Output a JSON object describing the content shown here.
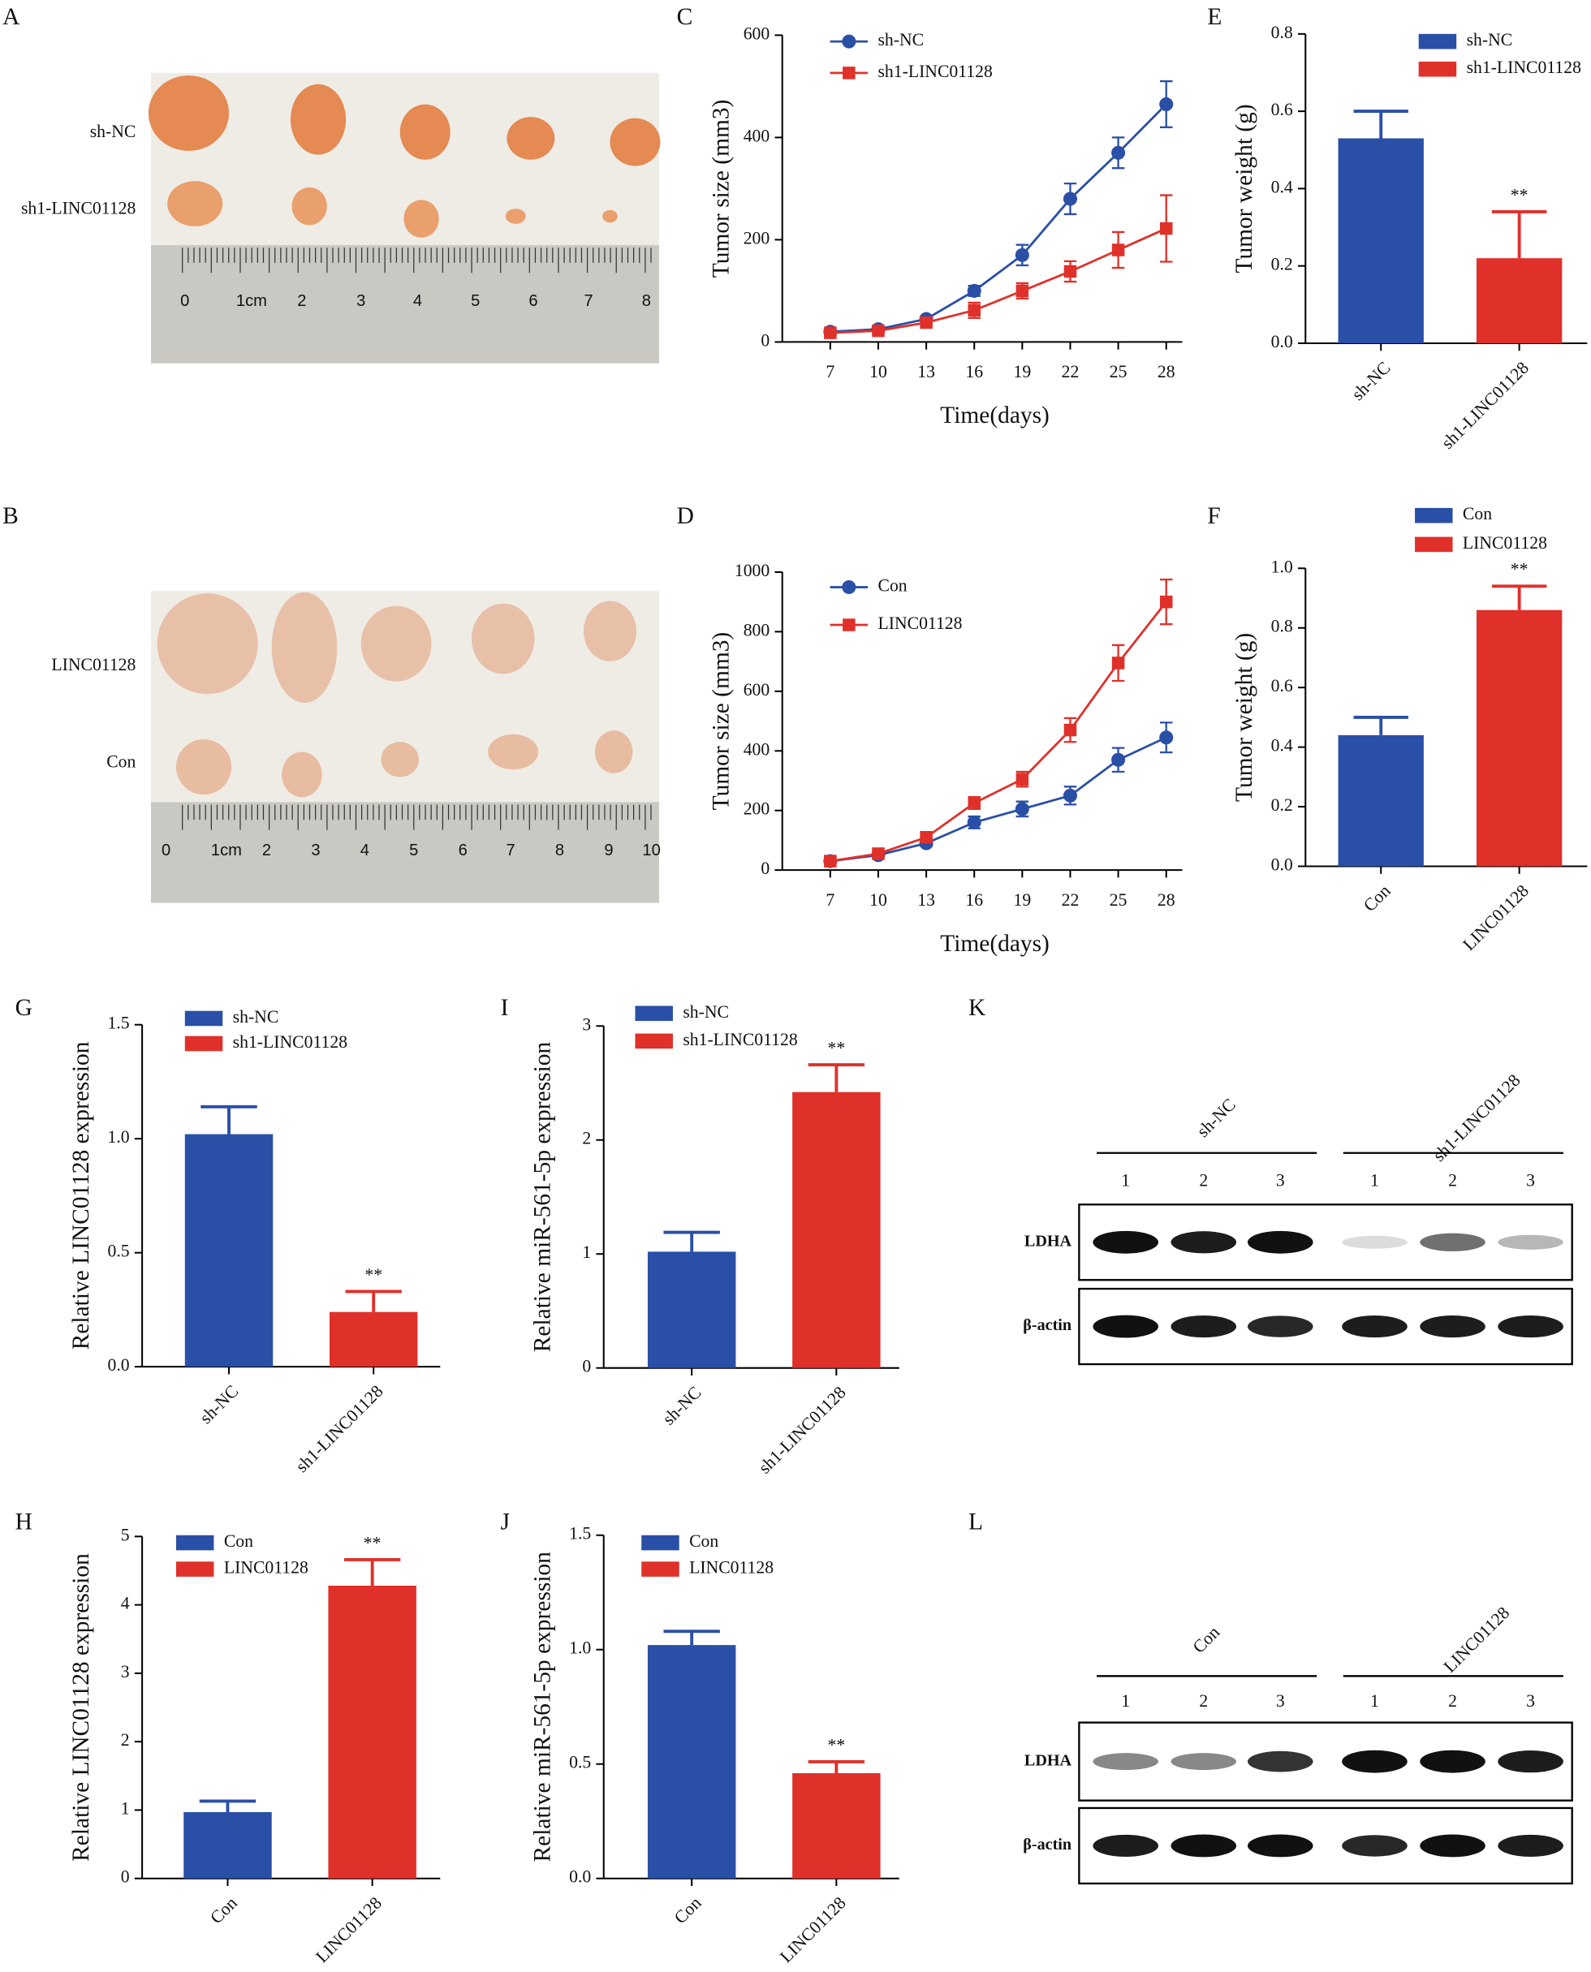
{
  "chart_data": [
    {
      "type": "line",
      "panel_label": "C",
      "ylabel": "Tumor size (mm3)",
      "xlabel": "Time(days)",
      "x": [
        7,
        10,
        13,
        16,
        19,
        22,
        25,
        28
      ],
      "xlim": [
        4,
        29
      ],
      "xticks": [
        7,
        10,
        13,
        16,
        19,
        22,
        25,
        28
      ],
      "ylim": [
        0,
        600
      ],
      "yticks": [
        0,
        200,
        400,
        600
      ],
      "series": [
        {
          "name": "sh-NC",
          "color": "#2a4fa6",
          "marker": "circle",
          "values": [
            20,
            25,
            45,
            100,
            170,
            280,
            370,
            465
          ],
          "errors": [
            5,
            5,
            5,
            10,
            20,
            30,
            30,
            45
          ]
        },
        {
          "name": "sh1-LINC01128",
          "color": "#e0302a",
          "marker": "square",
          "values": [
            18,
            22,
            38,
            62,
            100,
            138,
            180,
            222
          ],
          "errors": [
            5,
            5,
            5,
            15,
            15,
            20,
            35,
            65
          ]
        }
      ]
    },
    {
      "type": "line",
      "panel_label": "D",
      "ylabel": "Tumor size (mm3)",
      "xlabel": "Time(days)",
      "x": [
        7,
        10,
        13,
        16,
        19,
        22,
        25,
        28
      ],
      "xlim": [
        4,
        29
      ],
      "xticks": [
        7,
        10,
        13,
        16,
        19,
        22,
        25,
        28
      ],
      "ylim": [
        0,
        1000
      ],
      "yticks": [
        0,
        200,
        400,
        600,
        800,
        1000
      ],
      "series": [
        {
          "name": "Con",
          "color": "#2a4fa6",
          "marker": "circle",
          "values": [
            30,
            50,
            90,
            160,
            205,
            250,
            370,
            445
          ],
          "errors": [
            5,
            5,
            10,
            20,
            25,
            30,
            40,
            50
          ]
        },
        {
          "name": "LINC01128",
          "color": "#e0302a",
          "marker": "square",
          "values": [
            30,
            55,
            110,
            225,
            305,
            470,
            695,
            900
          ],
          "errors": [
            5,
            5,
            10,
            20,
            25,
            40,
            60,
            75
          ]
        }
      ]
    },
    {
      "type": "bar",
      "panel_label": "E",
      "ylabel": "Tumor weight (g)",
      "categories": [
        "sh-NC",
        "sh1-LINC01128"
      ],
      "values": [
        0.53,
        0.22
      ],
      "errors": [
        0.07,
        0.12
      ],
      "colors": [
        "#2a4fa6",
        "#e0302a"
      ],
      "significance": [
        null,
        "**"
      ],
      "ylim": [
        0,
        0.8
      ],
      "yticks": [
        {
          "value": 0,
          "label": "0.0"
        },
        0.2,
        0.4,
        0.6,
        0.8
      ]
    },
    {
      "type": "bar",
      "panel_label": "F",
      "ylabel": "Tumor weight (g)",
      "categories": [
        "Con",
        "LINC01128"
      ],
      "values": [
        0.44,
        0.86
      ],
      "errors": [
        0.06,
        0.08
      ],
      "colors": [
        "#2a4fa6",
        "#e0302a"
      ],
      "significance": [
        null,
        "**"
      ],
      "ylim": [
        0,
        1
      ],
      "yticks": [
        {
          "value": 0,
          "label": "0.0"
        },
        0.2,
        0.4,
        0.6,
        0.8,
        {
          "value": 1,
          "label": "1.0"
        }
      ]
    },
    {
      "type": "bar",
      "panel_label": "G",
      "ylabel": "Relative LINC01128 expression",
      "categories": [
        "sh-NC",
        "sh1-LINC01128"
      ],
      "values": [
        1.02,
        0.24
      ],
      "errors": [
        0.12,
        0.09
      ],
      "colors": [
        "#2a4fa6",
        "#e0302a"
      ],
      "significance": [
        null,
        "**"
      ],
      "ylim": [
        0,
        1.5
      ],
      "yticks": [
        {
          "value": 0,
          "label": "0.0"
        },
        0.5,
        {
          "value": 1,
          "label": "1.0"
        },
        1.5
      ]
    },
    {
      "type": "bar",
      "panel_label": "I",
      "ylabel": "Relative miR-561-5p expression",
      "categories": [
        "sh-NC",
        "sh1-LINC01128"
      ],
      "values": [
        1.02,
        2.42
      ],
      "errors": [
        0.17,
        0.24
      ],
      "colors": [
        "#2a4fa6",
        "#e0302a"
      ],
      "significance": [
        null,
        "**"
      ],
      "ylim": [
        0,
        3
      ],
      "yticks": [
        0,
        1,
        2,
        3
      ]
    },
    {
      "type": "bar",
      "panel_label": "H",
      "ylabel": "Relative LINC01128 expression",
      "categories": [
        "Con",
        "LINC01128"
      ],
      "values": [
        0.97,
        4.28
      ],
      "errors": [
        0.16,
        0.38
      ],
      "colors": [
        "#2a4fa6",
        "#e0302a"
      ],
      "significance": [
        null,
        "**"
      ],
      "ylim": [
        0,
        5
      ],
      "yticks": [
        0,
        1,
        2,
        3,
        4,
        5
      ]
    },
    {
      "type": "bar",
      "panel_label": "J",
      "ylabel": "Relative miR-561-5p expression",
      "categories": [
        "Con",
        "LINC01128"
      ],
      "values": [
        1.02,
        0.46
      ],
      "errors": [
        0.06,
        0.05
      ],
      "colors": [
        "#2a4fa6",
        "#e0302a"
      ],
      "significance": [
        null,
        "**"
      ],
      "ylim": [
        0,
        1.5
      ],
      "yticks": [
        {
          "value": 0,
          "label": "0.0"
        },
        0.5,
        {
          "value": 1,
          "label": "1.0"
        },
        1.5
      ]
    }
  ],
  "photos": [
    {
      "panel_label": "A",
      "row_labels": [
        "sh-NC",
        "sh1-LINC01128"
      ],
      "ruler_labels": [
        "0",
        "1cm",
        "2",
        "3",
        "4",
        "5",
        "6",
        "7",
        "8"
      ]
    },
    {
      "panel_label": "B",
      "row_labels": [
        "LINC01128",
        "Con"
      ],
      "ruler_labels": [
        "0",
        "1cm",
        "2",
        "3",
        "4",
        "5",
        "6",
        "7",
        "8",
        "9",
        "10"
      ]
    }
  ],
  "blots": [
    {
      "panel_label": "K",
      "group_labels": [
        "sh-NC",
        "sh1-LINC01128"
      ],
      "lane_labels": [
        "1",
        "2",
        "3",
        "1",
        "2",
        "3"
      ],
      "row_labels": [
        "LDHA",
        "β-actin"
      ]
    },
    {
      "panel_label": "L",
      "group_labels": [
        "Con",
        "LINC01128"
      ],
      "lane_labels": [
        "1",
        "2",
        "3",
        "1",
        "2",
        "3"
      ],
      "row_labels": [
        "LDHA",
        "β-actin"
      ]
    }
  ]
}
